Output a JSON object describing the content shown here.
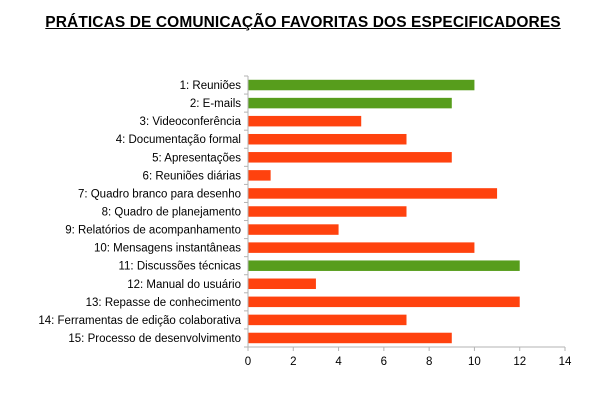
{
  "chart_data": {
    "type": "bar",
    "orientation": "horizontal",
    "title": "PRÁTICAS DE COMUNICAÇÃO FAVORITAS DOS ESPECIFICADORES",
    "xlabel": "",
    "ylabel": "",
    "xlim": [
      0,
      14
    ],
    "ticks": [
      "0",
      "2",
      "4",
      "6",
      "8",
      "10",
      "12",
      "14"
    ],
    "grid": false,
    "colors": {
      "highlight": "#579d1c",
      "default": "#ff420e",
      "axis": "#b3b3b3"
    },
    "categories": [
      "1: Reuniões",
      "2: E-mails",
      "3: Videoconferência",
      "4: Documentação formal",
      "5: Apresentações",
      "6: Reuniões diárias",
      "7: Quadro branco para desenho",
      "8: Quadro de planejamento",
      "9: Relatórios de acompanhamento",
      "10: Mensagens instantâneas",
      "11: Discussões técnicas",
      "12: Manual do usuário",
      "13: Repasse de conhecimento",
      "14: Ferramentas de edição colaborativa",
      "15: Processo de desenvolvimento"
    ],
    "values": [
      10,
      9,
      5,
      7,
      9,
      1,
      11,
      7,
      4,
      10,
      12,
      3,
      12,
      7,
      9
    ],
    "highlighted": [
      true,
      true,
      false,
      false,
      false,
      false,
      false,
      false,
      false,
      false,
      true,
      false,
      false,
      false,
      false
    ]
  }
}
